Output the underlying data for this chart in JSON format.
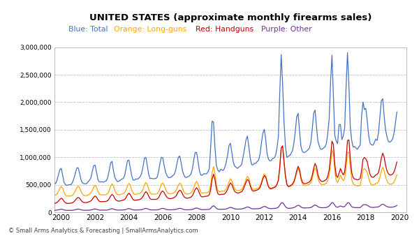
{
  "title": "UNITED STATES (approximate monthly firearms sales)",
  "subtitle_texts": [
    "Blue: Total ",
    "Orange: Long-guns ",
    "Red: Handguns ",
    "Purple: Other"
  ],
  "subtitle_colors": [
    "#4472C4",
    "#FFA500",
    "#CC0000",
    "#7030A0"
  ],
  "ylim": [
    0,
    3000000
  ],
  "yticks": [
    0,
    500000,
    1000000,
    1500000,
    2000000,
    2500000,
    3000000
  ],
  "xlim": [
    1999.6,
    2020.4
  ],
  "xticks": [
    2000,
    2002,
    2004,
    2006,
    2008,
    2010,
    2012,
    2014,
    2016,
    2018,
    2020
  ],
  "colors": {
    "total": "#4472C4",
    "longgun": "#FFA500",
    "handgun": "#CC0000",
    "other": "#7030A0"
  },
  "line_width": 0.9,
  "background_color": "#FFFFFF",
  "grid_color": "#AAAAAA",
  "copyright_text": "© Small Arms Analytics & Forecasting | SmallArmsAnalytics.com"
}
